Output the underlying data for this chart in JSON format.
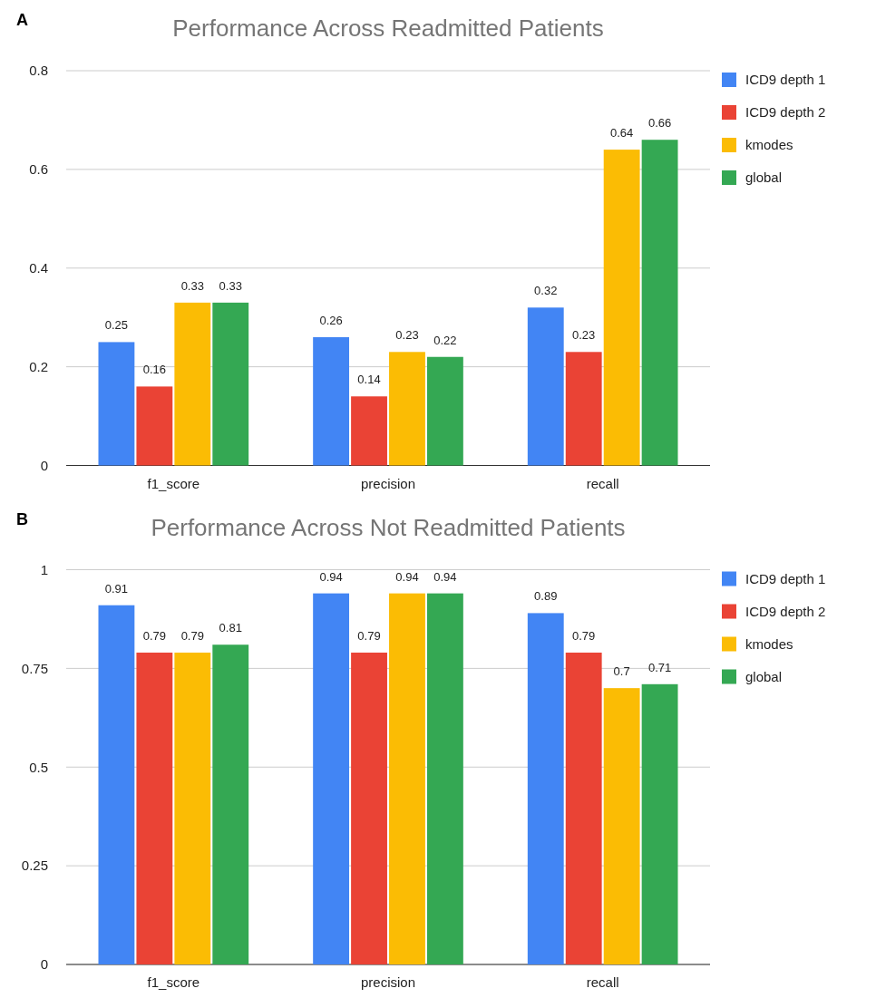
{
  "chart_data": [
    {
      "type": "bar",
      "title": "Performance Across Readmitted Patients",
      "annotations": [
        "A"
      ],
      "categories": [
        "f1_score",
        "precision",
        "recall"
      ],
      "series": [
        {
          "name": "ICD9 depth 1",
          "color": "#4285f4",
          "values": [
            0.25,
            0.26,
            0.32
          ]
        },
        {
          "name": "ICD9 depth 2",
          "color": "#ea4335",
          "values": [
            0.16,
            0.14,
            0.23
          ]
        },
        {
          "name": "kmodes",
          "color": "#fbbc04",
          "values": [
            0.33,
            0.23,
            0.64
          ]
        },
        {
          "name": "global",
          "color": "#34a853",
          "values": [
            0.33,
            0.22,
            0.66
          ]
        }
      ],
      "ylim": [
        0,
        0.8
      ],
      "yticks": [
        0,
        0.2,
        0.4,
        0.6,
        0.8
      ],
      "grid": "y",
      "legend": "right",
      "data_labels": true
    },
    {
      "type": "bar",
      "title": "Performance Across Not Readmitted Patients",
      "annotations": [
        "B"
      ],
      "categories": [
        "f1_score",
        "precision",
        "recall"
      ],
      "series": [
        {
          "name": "ICD9 depth 1",
          "color": "#4285f4",
          "values": [
            0.91,
            0.94,
            0.89
          ]
        },
        {
          "name": "ICD9 depth 2",
          "color": "#ea4335",
          "values": [
            0.79,
            0.79,
            0.79
          ]
        },
        {
          "name": "kmodes",
          "color": "#fbbc04",
          "values": [
            0.79,
            0.94,
            0.7
          ]
        },
        {
          "name": "global",
          "color": "#34a853",
          "values": [
            0.81,
            0.94,
            0.71
          ]
        }
      ],
      "ylim": [
        0,
        1
      ],
      "yticks": [
        0,
        0.25,
        0.5,
        0.75,
        1
      ],
      "grid": "y",
      "legend": "right",
      "data_labels": true
    }
  ]
}
